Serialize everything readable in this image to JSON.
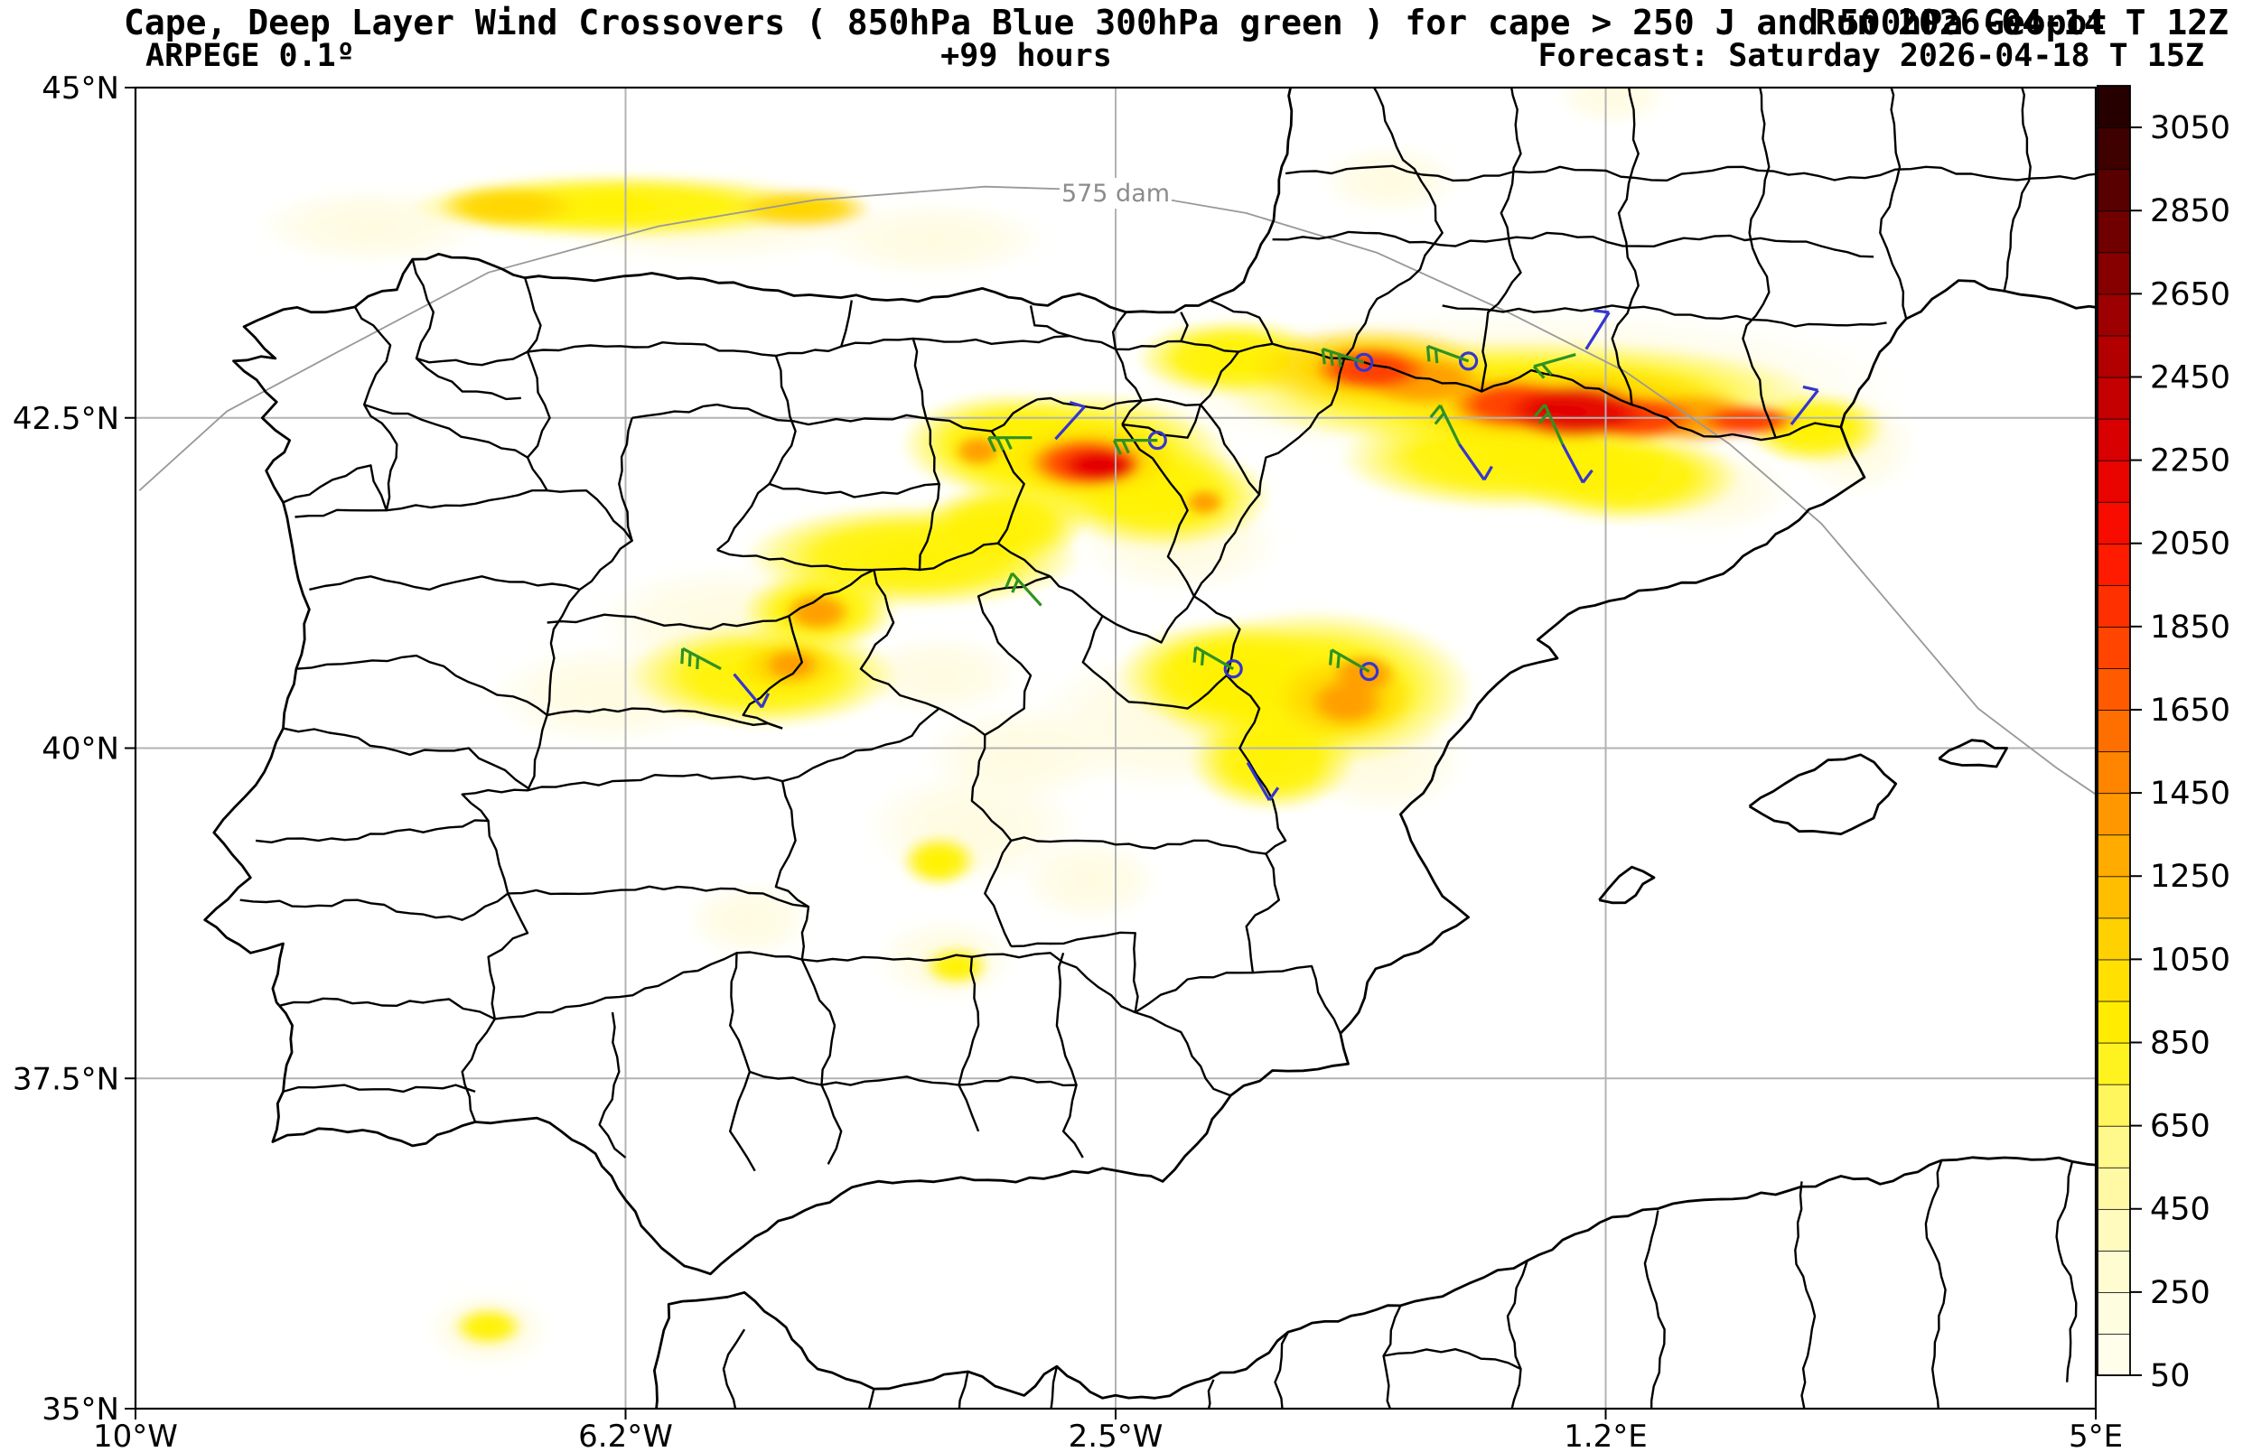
{
  "header": {
    "title": "Cape, Deep Layer Wind Crossovers ( 850hPa Blue 300hPa green ) for cape > 250 J and 500hPa Geopot",
    "run_label": "Run 2026-04-14 T 12Z",
    "model_label": "ARPEGE 0.1º",
    "lead_label": "+99 hours",
    "forecast_label": "Forecast: Saturday 2026-04-18 T 15Z"
  },
  "chart_data": {
    "type": "heatmap",
    "title": "Cape, Deep Layer Wind Crossovers ( 850hPa Blue 300hPa green ) for cape > 250 J and 500hPa Geopot",
    "subtitle_left": "ARPEGE 0.1º",
    "subtitle_center": "+99 hours",
    "subtitle_right": "Forecast: Saturday 2026-04-18 T 15Z",
    "run": "Run 2026-04-14 T 12Z",
    "grid": true,
    "lon_range": [
      -10,
      5
    ],
    "lat_range": [
      35,
      45
    ],
    "x_ticks": [
      "10°W",
      "6.2°W",
      "2.5°W",
      "1.2°E",
      "5°E"
    ],
    "x_tick_lons": [
      -10,
      -6.25,
      -2.5,
      1.25,
      5
    ],
    "y_ticks": [
      "45°N",
      "42.5°N",
      "40°N",
      "37.5°N",
      "35°N"
    ],
    "y_tick_lats": [
      45,
      42.5,
      40,
      37.5,
      35
    ],
    "grid_lons": [
      -6.25,
      -2.5,
      1.25
    ],
    "grid_lats": [
      42.5,
      40,
      37.5
    ],
    "colorbar": {
      "min": 50,
      "max": 3150,
      "segment": 100,
      "tick_values": [
        50,
        250,
        450,
        650,
        850,
        1050,
        1250,
        1450,
        1650,
        1850,
        2050,
        2250,
        2450,
        2650,
        2850,
        3050
      ],
      "anchors": [
        [
          50,
          "#FFFEF0"
        ],
        [
          250,
          "#FFFCDA"
        ],
        [
          450,
          "#FFFAB4"
        ],
        [
          650,
          "#FFF77C"
        ],
        [
          850,
          "#FFF200"
        ],
        [
          1050,
          "#FFDA00"
        ],
        [
          1250,
          "#FFB400"
        ],
        [
          1450,
          "#FF8E00"
        ],
        [
          1650,
          "#FF6400"
        ],
        [
          1850,
          "#FF3A00"
        ],
        [
          2050,
          "#FF1000"
        ],
        [
          2250,
          "#E10000"
        ],
        [
          2450,
          "#BC0000"
        ],
        [
          2650,
          "#930000"
        ],
        [
          2850,
          "#640000"
        ],
        [
          3050,
          "#320000"
        ],
        [
          3150,
          "#190000"
        ]
      ]
    },
    "geopotential_contour": {
      "label": "575 dam",
      "level_dam": 575,
      "label_lon": -2.5,
      "label_lat": 44.2,
      "path": [
        [
          -9.97,
          41.95
        ],
        [
          -9.3,
          42.55
        ],
        [
          -8.45,
          43.0
        ],
        [
          -7.3,
          43.6
        ],
        [
          -6.0,
          43.95
        ],
        [
          -4.8,
          44.15
        ],
        [
          -3.5,
          44.25
        ],
        [
          -2.5,
          44.22
        ],
        [
          -1.5,
          44.05
        ],
        [
          -0.5,
          43.75
        ],
        [
          0.5,
          43.3
        ],
        [
          1.4,
          42.85
        ],
        [
          2.2,
          42.3
        ],
        [
          2.9,
          41.7
        ],
        [
          3.5,
          41.0
        ],
        [
          4.1,
          40.3
        ],
        [
          4.7,
          39.85
        ],
        [
          5.0,
          39.65
        ]
      ]
    },
    "shading_levels": {
      "pale": "#FFFBDE",
      "yellow": "#FFF200",
      "gold": "#FFD600",
      "orange": "#FF9C00",
      "red": "#FF3A00",
      "deepred": "#E30000"
    },
    "cape_hotspots": [
      [
        0.6,
        42.75,
        3.0,
        0.6,
        "pale"
      ],
      [
        0.6,
        42.68,
        2.3,
        0.42,
        "yellow"
      ],
      [
        -1.6,
        42.95,
        0.75,
        0.3,
        "yellow"
      ],
      [
        -0.55,
        42.88,
        0.95,
        0.32,
        "gold"
      ],
      [
        0.95,
        42.6,
        1.35,
        0.32,
        "gold"
      ],
      [
        -0.55,
        42.87,
        0.45,
        0.18,
        "red"
      ],
      [
        -0.15,
        42.78,
        0.5,
        0.2,
        "orange"
      ],
      [
        0.55,
        42.6,
        0.5,
        0.2,
        "red"
      ],
      [
        1.02,
        42.55,
        0.55,
        0.22,
        "deepred"
      ],
      [
        1.5,
        42.5,
        0.45,
        0.18,
        "red"
      ],
      [
        1.95,
        42.5,
        0.5,
        0.2,
        "orange"
      ],
      [
        2.35,
        42.48,
        0.38,
        0.13,
        "red"
      ],
      [
        2.85,
        42.42,
        0.55,
        0.28,
        "yellow"
      ],
      [
        3.15,
        42.3,
        0.5,
        0.4,
        "pale"
      ],
      [
        0.5,
        42.2,
        1.3,
        0.4,
        "yellow"
      ],
      [
        1.4,
        42.05,
        0.9,
        0.35,
        "yellow"
      ],
      [
        2.0,
        41.95,
        0.7,
        0.35,
        "pale"
      ],
      [
        -2.7,
        42.2,
        1.1,
        0.5,
        "yellow"
      ],
      [
        -2.7,
        42.18,
        0.65,
        0.28,
        "gold"
      ],
      [
        -2.72,
        42.16,
        0.45,
        0.2,
        "red"
      ],
      [
        -2.62,
        42.14,
        0.3,
        0.13,
        "deepred"
      ],
      [
        -3.55,
        42.25,
        0.2,
        0.13,
        "orange"
      ],
      [
        -3.3,
        42.3,
        0.85,
        0.4,
        "yellow"
      ],
      [
        -2.15,
        41.9,
        0.85,
        0.4,
        "yellow"
      ],
      [
        -1.82,
        41.86,
        0.16,
        0.11,
        "orange"
      ],
      [
        -2.0,
        41.55,
        0.8,
        0.4,
        "pale"
      ],
      [
        -6.3,
        44.1,
        1.6,
        0.25,
        "yellow"
      ],
      [
        -4.9,
        44.08,
        0.55,
        0.16,
        "gold"
      ],
      [
        -7.15,
        44.1,
        0.55,
        0.16,
        "gold"
      ],
      [
        -8.2,
        43.95,
        0.9,
        0.3,
        "pale"
      ],
      [
        -5.6,
        44.0,
        1.3,
        0.35,
        "pale"
      ],
      [
        -3.9,
        43.85,
        0.9,
        0.3,
        "pale"
      ],
      [
        -4.05,
        41.45,
        1.3,
        0.4,
        "yellow"
      ],
      [
        -4.77,
        41.04,
        0.6,
        0.3,
        "yellow"
      ],
      [
        -4.78,
        41.03,
        0.27,
        0.16,
        "orange"
      ],
      [
        -3.35,
        41.7,
        0.65,
        0.3,
        "yellow"
      ],
      [
        -5.5,
        40.95,
        1.0,
        0.45,
        "pale"
      ],
      [
        -5.2,
        40.55,
        1.05,
        0.4,
        "yellow"
      ],
      [
        -5.0,
        40.62,
        0.4,
        0.2,
        "gold"
      ],
      [
        -4.98,
        40.63,
        0.22,
        0.13,
        "orange"
      ],
      [
        -6.4,
        40.4,
        0.9,
        0.4,
        "pale"
      ],
      [
        -1.0,
        40.45,
        1.25,
        0.6,
        "yellow"
      ],
      [
        -0.75,
        40.38,
        0.55,
        0.33,
        "gold"
      ],
      [
        -0.73,
        40.35,
        0.3,
        0.19,
        "orange"
      ],
      [
        -0.6,
        40.56,
        0.26,
        0.16,
        "orange"
      ],
      [
        -1.65,
        40.55,
        0.85,
        0.42,
        "yellow"
      ],
      [
        -1.3,
        39.9,
        0.65,
        0.38,
        "yellow"
      ],
      [
        -0.45,
        39.9,
        0.65,
        0.42,
        "pale"
      ],
      [
        -2.1,
        40.2,
        1.1,
        0.55,
        "pale"
      ],
      [
        -3.85,
        40.55,
        0.65,
        0.32,
        "pale"
      ],
      [
        -3.25,
        39.95,
        0.75,
        0.38,
        "pale"
      ],
      [
        -3.6,
        39.4,
        0.85,
        0.45,
        "pale"
      ],
      [
        -3.85,
        39.15,
        0.3,
        0.2,
        "yellow"
      ],
      [
        -2.7,
        39.0,
        0.55,
        0.33,
        "pale"
      ],
      [
        -3.72,
        38.35,
        0.26,
        0.16,
        "yellow"
      ],
      [
        -3.8,
        38.4,
        0.55,
        0.33,
        "pale"
      ],
      [
        -5.3,
        38.7,
        0.5,
        0.3,
        "pale"
      ],
      [
        -7.3,
        35.62,
        0.28,
        0.16,
        "yellow"
      ],
      [
        -7.3,
        35.6,
        0.5,
        0.3,
        "pale"
      ],
      [
        -0.4,
        44.3,
        0.55,
        0.28,
        "pale"
      ],
      [
        1.3,
        44.95,
        0.45,
        0.25,
        "pale"
      ]
    ],
    "wind_barbs": {
      "colors": {
        "850hPa": "#3535CF",
        "300hPa": "#2E9222"
      },
      "blue_850": [
        {
          "lon": -0.6,
          "lat": 42.92,
          "type": "circle"
        },
        {
          "lon": 0.2,
          "lat": 42.93,
          "type": "circle"
        },
        {
          "lon": -2.18,
          "lat": 42.33,
          "type": "circle"
        },
        {
          "lon": -1.6,
          "lat": 40.6,
          "type": "circle"
        },
        {
          "lon": -0.56,
          "lat": 40.58,
          "type": "circle"
        },
        {
          "lon": 1.1,
          "lat": 43.02,
          "type": "barb",
          "angle": 58,
          "feathers": 1
        },
        {
          "lon": 0.13,
          "lat": 42.3,
          "type": "barb",
          "angle": -55,
          "feathers": 1
        },
        {
          "lon": 0.92,
          "lat": 42.3,
          "type": "barb",
          "angle": -62,
          "feathers": 1
        },
        {
          "lon": -2.96,
          "lat": 42.34,
          "type": "barb",
          "angle": 48,
          "feathers": 1
        },
        {
          "lon": -5.42,
          "lat": 40.56,
          "type": "barb",
          "angle": -50,
          "feathers": 1
        },
        {
          "lon": -1.49,
          "lat": 39.89,
          "type": "barb",
          "angle": -60,
          "feathers": 1
        },
        {
          "lon": 2.67,
          "lat": 42.45,
          "type": "barb",
          "angle": 52,
          "feathers": 1
        }
      ],
      "green_300": [
        {
          "lon": -0.6,
          "lat": 42.92,
          "type": "barb",
          "angle": 162,
          "feathers": 3
        },
        {
          "lon": 0.2,
          "lat": 42.93,
          "type": "barb",
          "angle": 160,
          "feathers": 2
        },
        {
          "lon": 1.02,
          "lat": 42.98,
          "type": "barb",
          "angle": 196,
          "feathers": 2
        },
        {
          "lon": 0.13,
          "lat": 42.3,
          "type": "barb",
          "angle": 116,
          "feathers": 2
        },
        {
          "lon": 0.92,
          "lat": 42.3,
          "type": "barb",
          "angle": 114,
          "feathers": 2
        },
        {
          "lon": -3.14,
          "lat": 42.35,
          "type": "barb",
          "angle": 180,
          "feathers": 3
        },
        {
          "lon": -2.18,
          "lat": 42.33,
          "type": "barb",
          "angle": 180,
          "feathers": 2
        },
        {
          "lon": -5.52,
          "lat": 40.6,
          "type": "barb",
          "angle": 152,
          "feathers": 3
        },
        {
          "lon": -3.07,
          "lat": 41.08,
          "type": "barb",
          "angle": 132,
          "feathers": 2
        },
        {
          "lon": -1.6,
          "lat": 40.6,
          "type": "barb",
          "angle": 150,
          "feathers": 2
        },
        {
          "lon": -0.56,
          "lat": 40.58,
          "type": "barb",
          "angle": 150,
          "feathers": 2
        }
      ]
    }
  },
  "colors": {
    "gridline": "#B3B3B3",
    "contour": "#999999",
    "contour_label": "#8C8C8C",
    "border": "#000000"
  }
}
